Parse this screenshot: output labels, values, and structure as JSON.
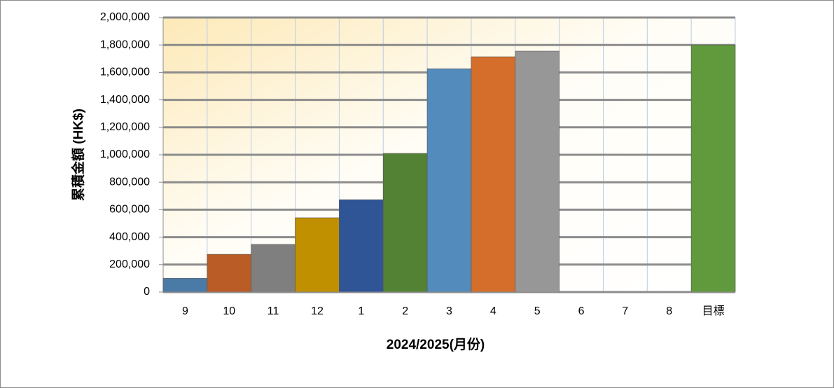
{
  "chart_data": {
    "type": "bar",
    "x_label": "2024/2025(月份)",
    "y_label": "累積金額 (HK$)",
    "categories": [
      "9",
      "10",
      "11",
      "12",
      "1",
      "2",
      "3",
      "4",
      "5",
      "6",
      "7",
      "8",
      "目標"
    ],
    "values": [
      100000,
      275000,
      347000,
      541000,
      673000,
      1010000,
      1627000,
      1714000,
      1755000,
      0,
      0,
      0,
      1800000
    ],
    "colors": [
      "#4a7aa6",
      "#b95c25",
      "#7f7f7f",
      "#c09000",
      "#2f5597",
      "#548235",
      "#538bbd",
      "#d46e2a",
      "#979797",
      "#e0e0e0",
      "#e0e0e0",
      "#e0e0e0",
      "#619a3c"
    ],
    "ylim": [
      0,
      2000000
    ],
    "yticks": [
      0,
      {
        "value": 200000,
        "label": "200,000"
      },
      {
        "value": 400000,
        "label": "400,000"
      },
      {
        "value": 600000,
        "label": "600,000"
      },
      {
        "value": 800000,
        "label": "800,000"
      },
      {
        "value": 1000000,
        "label": "1,000,000"
      },
      {
        "value": 1200000,
        "label": "1,200,000"
      },
      {
        "value": 1400000,
        "label": "1,400,000"
      },
      {
        "value": 1600000,
        "label": "1,600,000"
      },
      {
        "value": 1800000,
        "label": "1,800,000"
      },
      {
        "value": 2000000,
        "label": "2,000,000"
      }
    ],
    "grid": true
  }
}
